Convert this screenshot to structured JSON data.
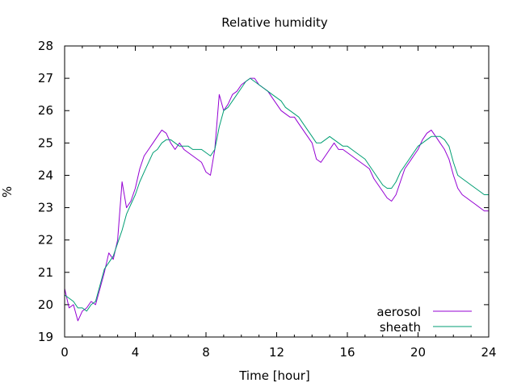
{
  "chart_data": {
    "type": "line",
    "title": "Relative humidity",
    "xlabel": "Time [hour]",
    "ylabel": "%",
    "xlim": [
      0,
      24
    ],
    "ylim": [
      19,
      28
    ],
    "x_ticks": [
      0,
      4,
      8,
      12,
      16,
      20,
      24
    ],
    "x_tick_labels": [
      "0",
      "4",
      "8",
      "12",
      "16",
      "20",
      "24"
    ],
    "y_ticks": [
      19,
      20,
      21,
      22,
      23,
      24,
      25,
      26,
      27,
      28
    ],
    "y_tick_labels": [
      "19",
      "20",
      "21",
      "22",
      "23",
      "24",
      "25",
      "26",
      "27",
      "28"
    ],
    "grid": false,
    "legend_position": "bottom-right",
    "series": [
      {
        "name": "aerosol",
        "color": "#9400d3",
        "x": [
          0,
          0.25,
          0.5,
          0.75,
          1,
          1.25,
          1.5,
          1.75,
          2,
          2.25,
          2.5,
          2.75,
          3,
          3.25,
          3.5,
          3.75,
          4,
          4.25,
          4.5,
          4.75,
          5,
          5.25,
          5.5,
          5.75,
          6,
          6.25,
          6.5,
          6.75,
          7,
          7.25,
          7.5,
          7.75,
          8,
          8.25,
          8.5,
          8.75,
          9,
          9.25,
          9.5,
          9.75,
          10,
          10.25,
          10.5,
          10.75,
          11,
          11.25,
          11.5,
          11.75,
          12,
          12.25,
          12.5,
          12.75,
          13,
          13.25,
          13.5,
          13.75,
          14,
          14.25,
          14.5,
          14.75,
          15,
          15.25,
          15.5,
          15.75,
          16,
          16.25,
          16.5,
          16.75,
          17,
          17.25,
          17.5,
          17.75,
          18,
          18.25,
          18.5,
          18.75,
          19,
          19.25,
          19.5,
          19.75,
          20,
          20.25,
          20.5,
          20.75,
          21,
          21.25,
          21.5,
          21.75,
          22,
          22.25,
          22.5,
          22.75,
          23,
          23.25,
          23.5,
          23.75,
          24
        ],
        "y": [
          20.5,
          19.9,
          20.0,
          19.5,
          19.8,
          19.9,
          20.1,
          20.0,
          20.5,
          21.0,
          21.6,
          21.4,
          22.0,
          23.8,
          23.0,
          23.2,
          23.6,
          24.2,
          24.6,
          24.8,
          25.0,
          25.2,
          25.4,
          25.3,
          25.0,
          24.8,
          25.0,
          24.8,
          24.7,
          24.6,
          24.5,
          24.4,
          24.1,
          24.0,
          24.8,
          26.5,
          26.0,
          26.2,
          26.5,
          26.6,
          26.8,
          26.9,
          27.0,
          27.0,
          26.8,
          26.7,
          26.6,
          26.4,
          26.2,
          26.0,
          25.9,
          25.8,
          25.8,
          25.6,
          25.4,
          25.2,
          25.0,
          24.5,
          24.4,
          24.6,
          24.8,
          25.0,
          24.8,
          24.8,
          24.7,
          24.6,
          24.5,
          24.4,
          24.3,
          24.2,
          23.9,
          23.7,
          23.5,
          23.3,
          23.2,
          23.4,
          23.8,
          24.2,
          24.4,
          24.6,
          24.8,
          25.1,
          25.3,
          25.4,
          25.2,
          25.0,
          24.8,
          24.5,
          24.0,
          23.6,
          23.4,
          23.3,
          23.2,
          23.1,
          23.0,
          22.9,
          22.9
        ]
      },
      {
        "name": "sheath",
        "color": "#009e73",
        "x": [
          0,
          0.25,
          0.5,
          0.75,
          1,
          1.25,
          1.5,
          1.75,
          2,
          2.25,
          2.5,
          2.75,
          3,
          3.25,
          3.5,
          3.75,
          4,
          4.25,
          4.5,
          4.75,
          5,
          5.25,
          5.5,
          5.75,
          6,
          6.25,
          6.5,
          6.75,
          7,
          7.25,
          7.5,
          7.75,
          8,
          8.25,
          8.5,
          8.75,
          9,
          9.25,
          9.5,
          9.75,
          10,
          10.25,
          10.5,
          10.75,
          11,
          11.25,
          11.5,
          11.75,
          12,
          12.25,
          12.5,
          12.75,
          13,
          13.25,
          13.5,
          13.75,
          14,
          14.25,
          14.5,
          14.75,
          15,
          15.25,
          15.5,
          15.75,
          16,
          16.25,
          16.5,
          16.75,
          17,
          17.25,
          17.5,
          17.75,
          18,
          18.25,
          18.5,
          18.75,
          19,
          19.25,
          19.5,
          19.75,
          20,
          20.25,
          20.5,
          20.75,
          21,
          21.25,
          21.5,
          21.75,
          22,
          22.25,
          22.5,
          22.75,
          23,
          23.25,
          23.5,
          23.75,
          24
        ],
        "y": [
          20.3,
          20.2,
          20.1,
          19.9,
          19.9,
          19.8,
          20.0,
          20.1,
          20.6,
          21.1,
          21.3,
          21.5,
          21.9,
          22.3,
          22.8,
          23.1,
          23.4,
          23.8,
          24.1,
          24.4,
          24.7,
          24.8,
          25.0,
          25.1,
          25.1,
          25.0,
          24.9,
          24.9,
          24.9,
          24.8,
          24.8,
          24.8,
          24.7,
          24.6,
          24.8,
          25.5,
          26.0,
          26.1,
          26.3,
          26.5,
          26.7,
          26.9,
          27.0,
          26.9,
          26.8,
          26.7,
          26.6,
          26.5,
          26.4,
          26.3,
          26.1,
          26.0,
          25.9,
          25.8,
          25.6,
          25.4,
          25.2,
          25.0,
          25.0,
          25.1,
          25.2,
          25.1,
          25.0,
          24.9,
          24.9,
          24.8,
          24.7,
          24.6,
          24.5,
          24.3,
          24.1,
          23.9,
          23.7,
          23.6,
          23.6,
          23.8,
          24.1,
          24.3,
          24.5,
          24.7,
          24.9,
          25.0,
          25.1,
          25.2,
          25.2,
          25.2,
          25.1,
          24.9,
          24.4,
          24.0,
          23.9,
          23.8,
          23.7,
          23.6,
          23.5,
          23.4,
          23.4
        ]
      }
    ]
  }
}
